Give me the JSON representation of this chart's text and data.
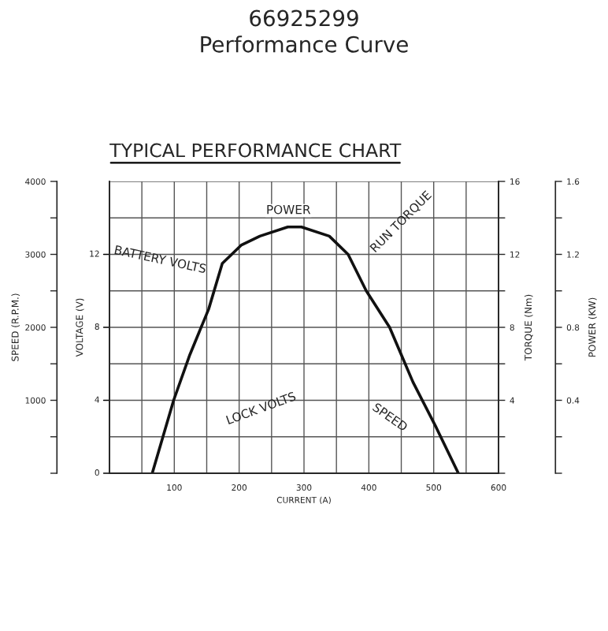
{
  "chart_data": {
    "type": "line",
    "title": "66925299\nPerformance Curve",
    "subtitle": "TYPICAL PERFORMANCE CHART",
    "xlabel": "CURRENT (A)",
    "ylabel": "SPEED (R.P.M.)",
    "y2label": "TORQUE (Nm)",
    "y3label": "POWER (KW)",
    "series": [
      {
        "color": "#111111",
        "axis": "y3",
        "x": [
          66,
          99,
          124,
          153,
          174,
          203,
          232,
          275,
          296,
          339,
          368,
          396,
          432,
          468,
          504,
          538
        ],
        "values": [
          0,
          0.4,
          0.65,
          0.9,
          1.15,
          1.25,
          1.3,
          1.35,
          1.35,
          1.3,
          1.2,
          1.0,
          0.8,
          0.5,
          0.25,
          0
        ]
      }
    ],
    "xlim": [
      0,
      600
    ],
    "xticks": [
      {
        "value": 0,
        "label": null
      },
      {
        "value": 50,
        "label": null
      },
      100,
      {
        "value": 150,
        "label": null
      },
      200,
      {
        "value": 250,
        "label": null
      },
      300,
      {
        "value": 350,
        "label": null
      },
      400,
      {
        "value": 450,
        "label": null
      },
      500,
      {
        "value": 550,
        "label": null
      },
      600
    ],
    "ylim": [
      0,
      4000
    ],
    "yticks": [
      {
        "value": 0,
        "label": null
      },
      {
        "value": 500,
        "label": null
      },
      1000,
      {
        "value": 1500,
        "label": null
      },
      2000,
      {
        "value": 2500,
        "label": null
      },
      3000,
      {
        "value": 3500,
        "label": null
      },
      4000
    ],
    "y2lim": [
      0,
      16
    ],
    "y2ticks": [
      {
        "value": 0,
        "label": null
      },
      {
        "value": 2,
        "label": null
      },
      4,
      {
        "value": 6,
        "label": null
      },
      8,
      {
        "value": 10,
        "label": null
      },
      12,
      {
        "value": 14,
        "label": null
      },
      16
    ],
    "y3lim": [
      0,
      1.6
    ],
    "y3ticks": [
      {
        "value": 0,
        "label": null
      },
      {
        "value": 0.2,
        "label": null
      },
      0.4,
      {
        "value": 0.6,
        "label": null
      },
      0.8,
      {
        "value": 1.0,
        "label": null
      },
      1.2,
      {
        "value": 1.4,
        "label": null
      },
      1.6
    ],
    "grid": true,
    "line_style": "solid",
    "marker": "none",
    "legend": false,
    "annotations": [
      "POWER",
      "BATTERY VOLTS",
      "RUN TORQUE",
      "LOCK VOLTS",
      "SPEED",
      "VOLTAGE (V)",
      "0",
      "4",
      "8",
      "12"
    ]
  }
}
